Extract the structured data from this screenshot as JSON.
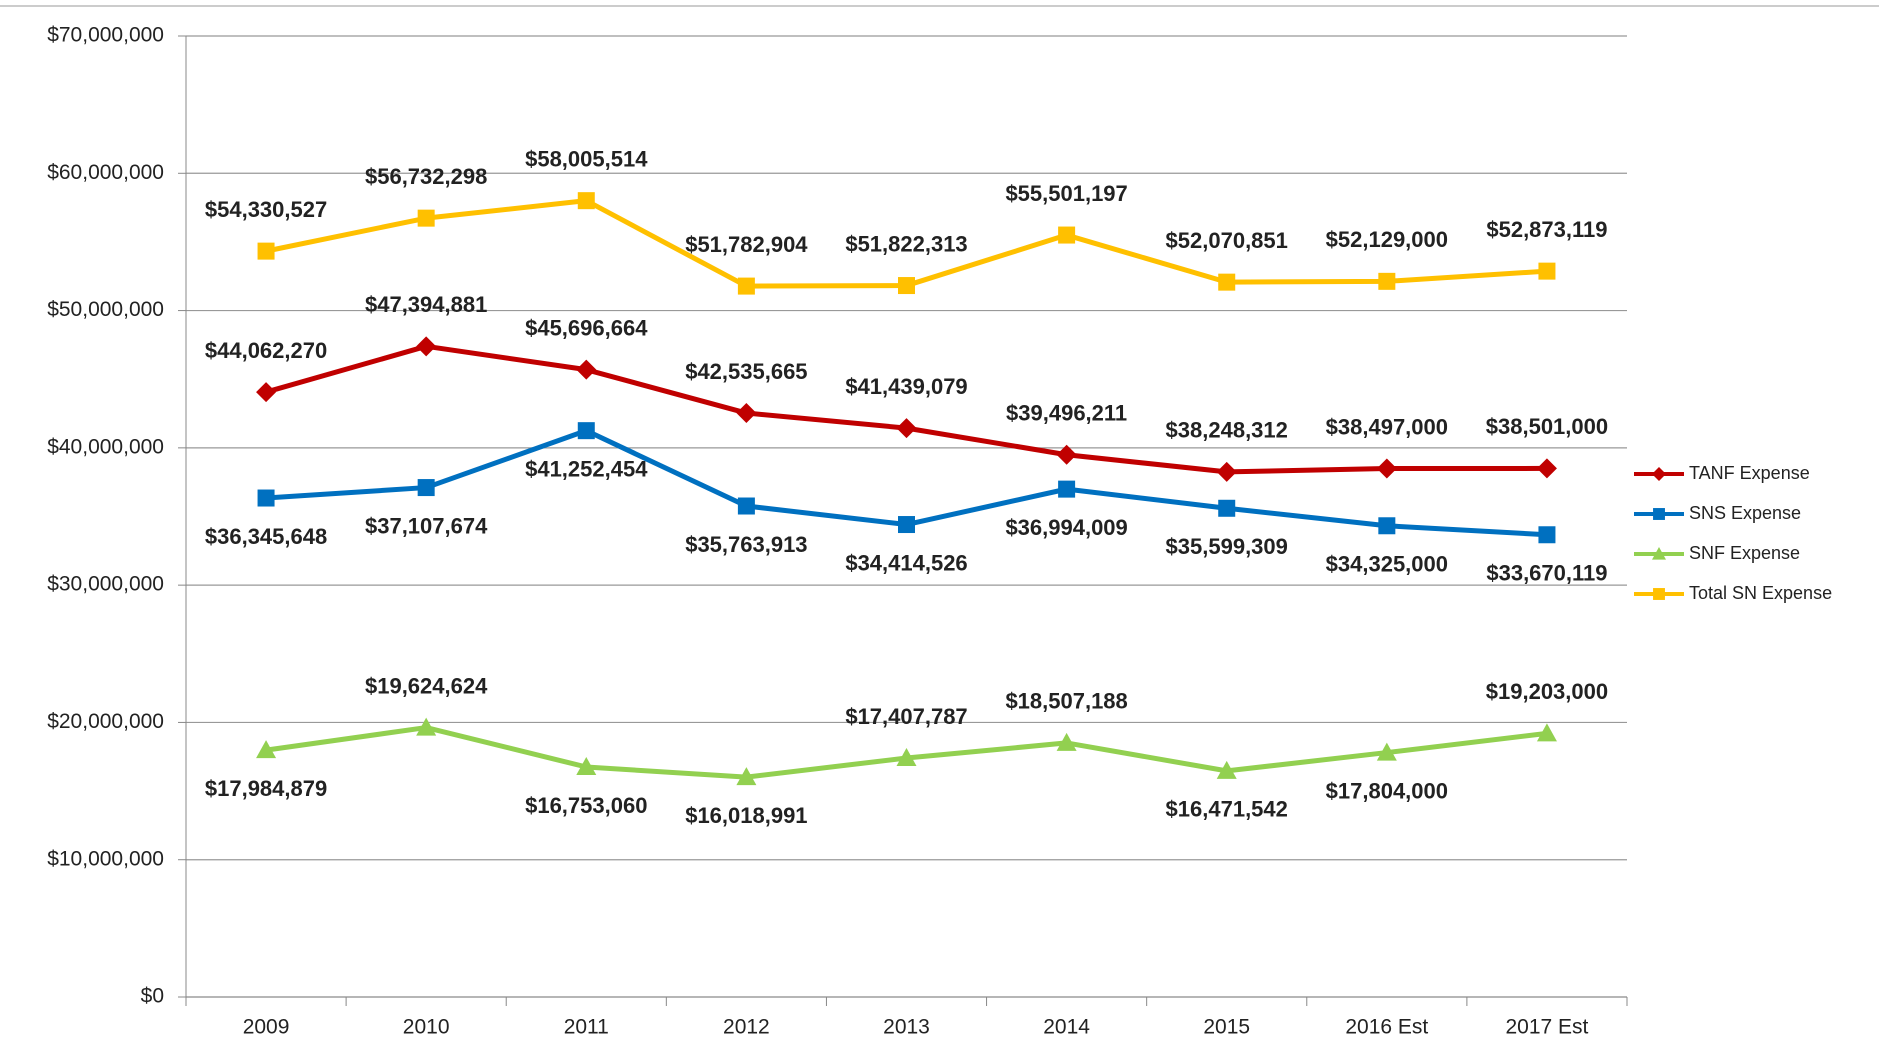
{
  "chart_data": {
    "type": "line",
    "categories": [
      "2009",
      "2010",
      "2011",
      "2012",
      "2013",
      "2014",
      "2015",
      "2016 Est",
      "2017 Est"
    ],
    "series": [
      {
        "name": "TANF Expense",
        "color": "#c00000",
        "marker": "diamond",
        "values": [
          44062270,
          47394881,
          45696664,
          42535665,
          41439079,
          39496211,
          38248312,
          38497000,
          38501000
        ],
        "value_labels": [
          "$44,062,270",
          "$47,394,881",
          "$45,696,664",
          "$42,535,665",
          "$41,439,079",
          "$39,496,211",
          "$38,248,312",
          "$38,497,000",
          "$38,501,000"
        ]
      },
      {
        "name": "SNS Expense",
        "color": "#0070c0",
        "marker": "square",
        "values": [
          36345648,
          37107674,
          41252454,
          35763913,
          34414526,
          36994009,
          35599309,
          34325000,
          33670119
        ],
        "value_labels": [
          "$36,345,648",
          "$37,107,674",
          "$41,252,454",
          "$35,763,913",
          "$34,414,526",
          "$36,994,009",
          "$35,599,309",
          "$34,325,000",
          "$33,670,119"
        ]
      },
      {
        "name": "SNF Expense",
        "color": "#92d050",
        "marker": "triangle",
        "values": [
          17984879,
          19624624,
          16753060,
          16018991,
          17407787,
          18507188,
          16471542,
          17804000,
          19203000
        ],
        "value_labels": [
          "$17,984,879",
          "$19,624,624",
          "$16,753,060",
          "$16,018,991",
          "$17,407,787",
          "$18,507,188",
          "$16,471,542",
          "$17,804,000",
          "$19,203,000"
        ]
      },
      {
        "name": "Total SN Expense",
        "color": "#ffc000",
        "marker": "square",
        "values": [
          54330527,
          56732298,
          58005514,
          51782904,
          51822313,
          55501197,
          52070851,
          52129000,
          52873119
        ],
        "value_labels": [
          "$54,330,527",
          "$56,732,298",
          "$58,005,514",
          "$51,782,904",
          "$51,822,313",
          "$55,501,197",
          "$52,070,851",
          "$52,129,000",
          "$52,873,119"
        ]
      }
    ],
    "ylim": [
      0,
      70000000
    ],
    "yticks": [
      {
        "value": 0,
        "label": "$0"
      },
      {
        "value": 10000000,
        "label": "$10,000,000"
      },
      {
        "value": 20000000,
        "label": "$20,000,000"
      },
      {
        "value": 30000000,
        "label": "$30,000,000"
      },
      {
        "value": 40000000,
        "label": "$40,000,000"
      },
      {
        "value": 50000000,
        "label": "$50,000,000"
      },
      {
        "value": 60000000,
        "label": "$60,000,000"
      },
      {
        "value": 70000000,
        "label": "$70,000,000"
      }
    ],
    "grid": true,
    "legend": "right"
  }
}
